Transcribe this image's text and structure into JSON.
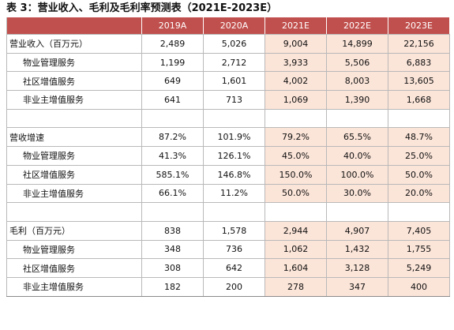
{
  "title": "表 3：营业收入、毛利及毛利率预测表（2021E-2023E）",
  "columns": [
    "",
    "2019A",
    "2020A",
    "2021E",
    "2022E",
    "2023E"
  ],
  "rows": [
    {
      "kind": "main",
      "label": "营业收入（百万元）",
      "values": [
        "2,489",
        "5,026",
        "9,004",
        "14,899",
        "22,156"
      ]
    },
    {
      "kind": "sub",
      "label": "物业管理服务",
      "values": [
        "1,199",
        "2,712",
        "3,933",
        "5,506",
        "6,883"
      ]
    },
    {
      "kind": "sub",
      "label": "社区增值服务",
      "values": [
        "649",
        "1,601",
        "4,002",
        "8,003",
        "13,605"
      ]
    },
    {
      "kind": "sub",
      "label": "非业主增值服务",
      "values": [
        "641",
        "713",
        "1,069",
        "1,390",
        "1,668"
      ]
    },
    {
      "kind": "blank",
      "label": "",
      "values": [
        "",
        "",
        "",
        "",
        ""
      ]
    },
    {
      "kind": "main",
      "label": "营收增速",
      "values": [
        "87.2%",
        "101.9%",
        "79.2%",
        "65.5%",
        "48.7%"
      ]
    },
    {
      "kind": "sub",
      "label": "物业管理服务",
      "values": [
        "41.3%",
        "126.1%",
        "45.0%",
        "40.0%",
        "25.0%"
      ]
    },
    {
      "kind": "sub",
      "label": "社区增值服务",
      "values": [
        "585.1%",
        "146.8%",
        "150.0%",
        "100.0%",
        "50.0%"
      ]
    },
    {
      "kind": "sub",
      "label": "非业主增值服务",
      "values": [
        "66.1%",
        "11.2%",
        "50.0%",
        "30.0%",
        "20.0%"
      ]
    },
    {
      "kind": "blank",
      "label": "",
      "values": [
        "",
        "",
        "",
        "",
        ""
      ]
    },
    {
      "kind": "main",
      "label": "毛利（百万元）",
      "values": [
        "838",
        "1,578",
        "2,944",
        "4,907",
        "7,405"
      ]
    },
    {
      "kind": "sub",
      "label": "物业管理服务",
      "values": [
        "348",
        "736",
        "1,062",
        "1,432",
        "1,755"
      ]
    },
    {
      "kind": "sub",
      "label": "社区增值服务",
      "values": [
        "308",
        "642",
        "1,604",
        "3,128",
        "5,249"
      ]
    },
    {
      "kind": "sub",
      "label": "非业主增值服务",
      "values": [
        "182",
        "200",
        "278",
        "347",
        "400"
      ]
    }
  ],
  "colors": {
    "header": "#c0504d",
    "estimate_fill": "#fbe4d8"
  }
}
